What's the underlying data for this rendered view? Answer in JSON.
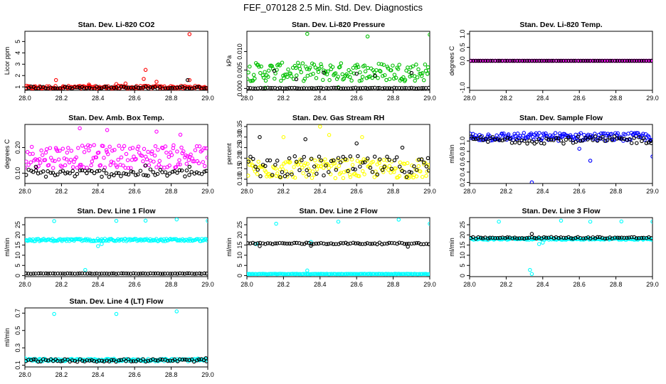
{
  "figure": {
    "title": "FEF_070128  2.5 Min. Std. Dev. Diagnostics"
  },
  "chart_data": [
    {
      "type": "scatter",
      "title": "Stan. Dev. Li-820 CO2",
      "ylabel": "Licor ppm",
      "xlim": [
        28.0,
        29.0
      ],
      "ylim": [
        0.7,
        5.9
      ],
      "x_ticks": [
        "28.0",
        "28.2",
        "28.4",
        "28.6",
        "28.8",
        "29.0"
      ],
      "y_ticks": [
        "1",
        "2",
        "3",
        "4",
        "5"
      ],
      "series": [
        {
          "color": "#ff0000",
          "base": 0.95,
          "noise": 0.15,
          "extra_points": [
            [
              28.9,
              5.65
            ],
            [
              28.17,
              1.6
            ],
            [
              28.66,
              2.5
            ],
            [
              28.65,
              1.7
            ],
            [
              28.55,
              1.3
            ],
            [
              28.35,
              1.2
            ],
            [
              28.5,
              1.25
            ],
            [
              28.9,
              1.6
            ],
            [
              28.72,
              1.45
            ]
          ]
        },
        {
          "color": "#000000",
          "base": 0.93,
          "noise": 0.1,
          "extra_points": [
            [
              28.89,
              1.6
            ]
          ]
        }
      ]
    },
    {
      "type": "scatter",
      "title": "Stan. Dev. Li-820 Pressure",
      "ylabel": "kPa",
      "xlim": [
        28.0,
        29.0
      ],
      "ylim": [
        -0.0005,
        0.0155
      ],
      "x_ticks": [
        "28.0",
        "28.2",
        "28.4",
        "28.6",
        "28.8",
        "29.0"
      ],
      "y_ticks": [
        "0.000",
        "0.005",
        "0.010"
      ],
      "series": [
        {
          "color": "#00c000",
          "base": 0.0045,
          "noise": 0.0025,
          "extra_points": [
            [
              28.33,
              0.0148
            ],
            [
              28.66,
              0.0141
            ],
            [
              29.0,
              0.0146
            ],
            [
              28.1,
              0.0002
            ],
            [
              28.5,
              0.0003
            ]
          ]
        },
        {
          "color": "#000000",
          "base": 0.0001,
          "noise": 0.0001,
          "extra_points": [
            [
              28.15,
              0.0048
            ],
            [
              28.42,
              0.0043
            ],
            [
              28.6,
              0.004
            ],
            [
              28.9,
              0.0042
            ],
            [
              28.27,
              0.0025
            ],
            [
              28.7,
              0.0035
            ]
          ]
        }
      ]
    },
    {
      "type": "scatter",
      "title": "Stan. Dev. Li-820 Temp.",
      "ylabel": "degrees C",
      "xlim": [
        28.0,
        29.0
      ],
      "ylim": [
        -1.1,
        1.1
      ],
      "x_ticks": [
        "28.0",
        "28.2",
        "28.4",
        "28.6",
        "28.8",
        "29.0"
      ],
      "y_ticks": [
        "-1.0",
        "0.0",
        "0.5",
        "1.0"
      ],
      "series": [
        {
          "color": "#ff00ff",
          "base": 0.0,
          "noise": 0.0,
          "extra_points": []
        },
        {
          "color": "#000000",
          "base": 0.0,
          "noise": 0.0,
          "extra_points": []
        }
      ]
    },
    {
      "type": "scatter",
      "title": "Stan. Dev. Amb. Box Temp.",
      "ylabel": "degrees C",
      "xlim": [
        28.0,
        29.0
      ],
      "ylim": [
        0.06,
        0.29
      ],
      "x_ticks": [
        "28.0",
        "28.2",
        "28.4",
        "28.6",
        "28.8",
        "29.0"
      ],
      "y_ticks": [
        "0.10",
        "0.20"
      ],
      "series": [
        {
          "color": "#ff00ff",
          "base": 0.165,
          "noise": 0.045,
          "extra_points": [
            [
              28.3,
              0.275
            ],
            [
              28.45,
              0.268
            ],
            [
              28.72,
              0.262
            ],
            [
              28.85,
              0.25
            ]
          ]
        },
        {
          "color": "#000000",
          "base": 0.1,
          "noise": 0.015,
          "extra_points": [
            [
              28.06,
              0.125
            ],
            [
              28.66,
              0.13
            ],
            [
              28.9,
              0.125
            ]
          ]
        }
      ]
    },
    {
      "type": "scatter",
      "title": "Stan. Dev. Gas Stream RH",
      "ylabel": "percent",
      "xlim": [
        28.0,
        29.0
      ],
      "ylim": [
        0.08,
        0.36
      ],
      "x_ticks": [
        "28.0",
        "28.2",
        "28.4",
        "28.6",
        "28.8",
        "29.0"
      ],
      "y_ticks": [
        "0.10",
        "0.15",
        "0.20",
        "0.25",
        "0.30",
        "0.35"
      ],
      "series": [
        {
          "color": "#ffff00",
          "base": 0.15,
          "noise": 0.045,
          "extra_points": [
            [
              28.4,
              0.35
            ],
            [
              28.63,
              0.3
            ],
            [
              28.2,
              0.3
            ],
            [
              28.45,
              0.31
            ]
          ]
        },
        {
          "color": "#000000",
          "base": 0.16,
          "noise": 0.05,
          "extra_points": [
            [
              28.07,
              0.3
            ],
            [
              28.32,
              0.29
            ],
            [
              28.6,
              0.27
            ],
            [
              28.85,
              0.25
            ],
            [
              28.99,
              0.2
            ]
          ]
        }
      ]
    },
    {
      "type": "scatter",
      "title": "Stan. Dev. Sample Flow",
      "ylabel": "ml/min",
      "xlim": [
        28.0,
        29.0
      ],
      "ylim": [
        0.18,
        1.32
      ],
      "x_ticks": [
        "28.0",
        "28.2",
        "28.4",
        "28.6",
        "28.8",
        "29.0"
      ],
      "y_ticks": [
        "0.2",
        "0.4",
        "0.6",
        "0.8",
        "1.0"
      ],
      "series": [
        {
          "color": "#0000ff",
          "base": 1.08,
          "noise": 0.08,
          "extra_points": [
            [
              28.34,
              0.2
            ],
            [
              28.66,
              0.62
            ],
            [
              29.0,
              0.7
            ],
            [
              28.6,
              0.85
            ]
          ]
        },
        {
          "color": "#000000",
          "base": 1.02,
          "noise": 0.07,
          "extra_points": [
            [
              28.99,
              1.0
            ]
          ]
        }
      ]
    },
    {
      "type": "scatter",
      "title": "Stan. Dev. Line 1 Flow",
      "ylabel": "ml/min",
      "xlim": [
        28.0,
        29.0
      ],
      "ylim": [
        -0.5,
        28.5
      ],
      "x_ticks": [
        "28.0",
        "28.2",
        "28.4",
        "28.6",
        "28.8",
        "29.0"
      ],
      "y_ticks": [
        "0",
        "5",
        "10",
        "15",
        "20",
        "25"
      ],
      "series": [
        {
          "color": "#00ffff",
          "base": 17.5,
          "noise": 0.6,
          "extra_points": [
            [
              28.16,
              26.8
            ],
            [
              28.5,
              26.9
            ],
            [
              28.66,
              27.0
            ],
            [
              28.83,
              27.6
            ],
            [
              29.0,
              26.9
            ],
            [
              28.33,
              2.8
            ],
            [
              28.4,
              14.5
            ],
            [
              28.42,
              15.5
            ]
          ]
        },
        {
          "color": "#000000",
          "base": 1.0,
          "noise": 0.1,
          "extra_points": []
        }
      ]
    },
    {
      "type": "scatter",
      "title": "Stan. Dev. Line 2 Flow",
      "ylabel": "ml/min",
      "xlim": [
        28.0,
        29.0
      ],
      "ylim": [
        -0.5,
        28.5
      ],
      "x_ticks": [
        "28.0",
        "28.2",
        "28.4",
        "28.6",
        "28.8",
        "29.0"
      ],
      "y_ticks": [
        "0",
        "5",
        "10",
        "15",
        "20",
        "25"
      ],
      "series": [
        {
          "color": "#00ffff",
          "base": 0.8,
          "noise": 0.1,
          "extra_points": [
            [
              28.16,
              25.5
            ],
            [
              28.5,
              26.5
            ],
            [
              28.83,
              27.5
            ],
            [
              29.0,
              25.5
            ],
            [
              28.33,
              2.5
            ],
            [
              28.35,
              16.5
            ],
            [
              28.05,
              15.5
            ]
          ]
        },
        {
          "color": "#000000",
          "base": 15.8,
          "noise": 0.4,
          "extra_points": [
            [
              28.07,
              14.5
            ],
            [
              28.35,
              14.7
            ],
            [
              28.88,
              14.2
            ]
          ]
        }
      ]
    },
    {
      "type": "scatter",
      "title": "Stan. Dev. Line 3 Flow",
      "ylabel": "ml/min",
      "xlim": [
        28.0,
        29.0
      ],
      "ylim": [
        -0.5,
        28.5
      ],
      "x_ticks": [
        "28.0",
        "28.2",
        "28.4",
        "28.6",
        "28.8",
        "29.0"
      ],
      "y_ticks": [
        "0",
        "5",
        "10",
        "15",
        "20",
        "25"
      ],
      "series": [
        {
          "color": "#00ffff",
          "base": 18.0,
          "noise": 0.4,
          "extra_points": [
            [
              28.16,
              26.5
            ],
            [
              28.5,
              27.0
            ],
            [
              28.66,
              26.5
            ],
            [
              28.83,
              26.6
            ],
            [
              29.0,
              26.5
            ],
            [
              28.33,
              2.8
            ],
            [
              28.38,
              15.5
            ],
            [
              28.4,
              16.2
            ],
            [
              28.1,
              17.5
            ],
            [
              28.34,
              0.8
            ]
          ]
        },
        {
          "color": "#000000",
          "base": 18.6,
          "noise": 0.4,
          "extra_points": [
            [
              28.34,
              20.5
            ]
          ]
        }
      ]
    },
    {
      "type": "scatter",
      "title": "Stan. Dev. Line 4 (LT) Flow",
      "ylabel": "ml/min",
      "xlim": [
        28.0,
        29.0
      ],
      "ylim": [
        0.08,
        0.76
      ],
      "x_ticks": [
        "28.0",
        "28.2",
        "28.4",
        "28.6",
        "28.8",
        "29.0"
      ],
      "y_ticks": [
        "0.1",
        "0.3",
        "0.5",
        "0.7"
      ],
      "series": [
        {
          "color": "#00ffff",
          "base": 0.16,
          "noise": 0.015,
          "extra_points": [
            [
              28.16,
              0.69
            ],
            [
              28.5,
              0.69
            ],
            [
              28.83,
              0.72
            ],
            [
              28.0,
              0.18
            ]
          ]
        },
        {
          "color": "#000000",
          "base": 0.155,
          "noise": 0.015,
          "extra_points": [
            [
              28.99,
              0.18
            ]
          ]
        }
      ]
    }
  ]
}
